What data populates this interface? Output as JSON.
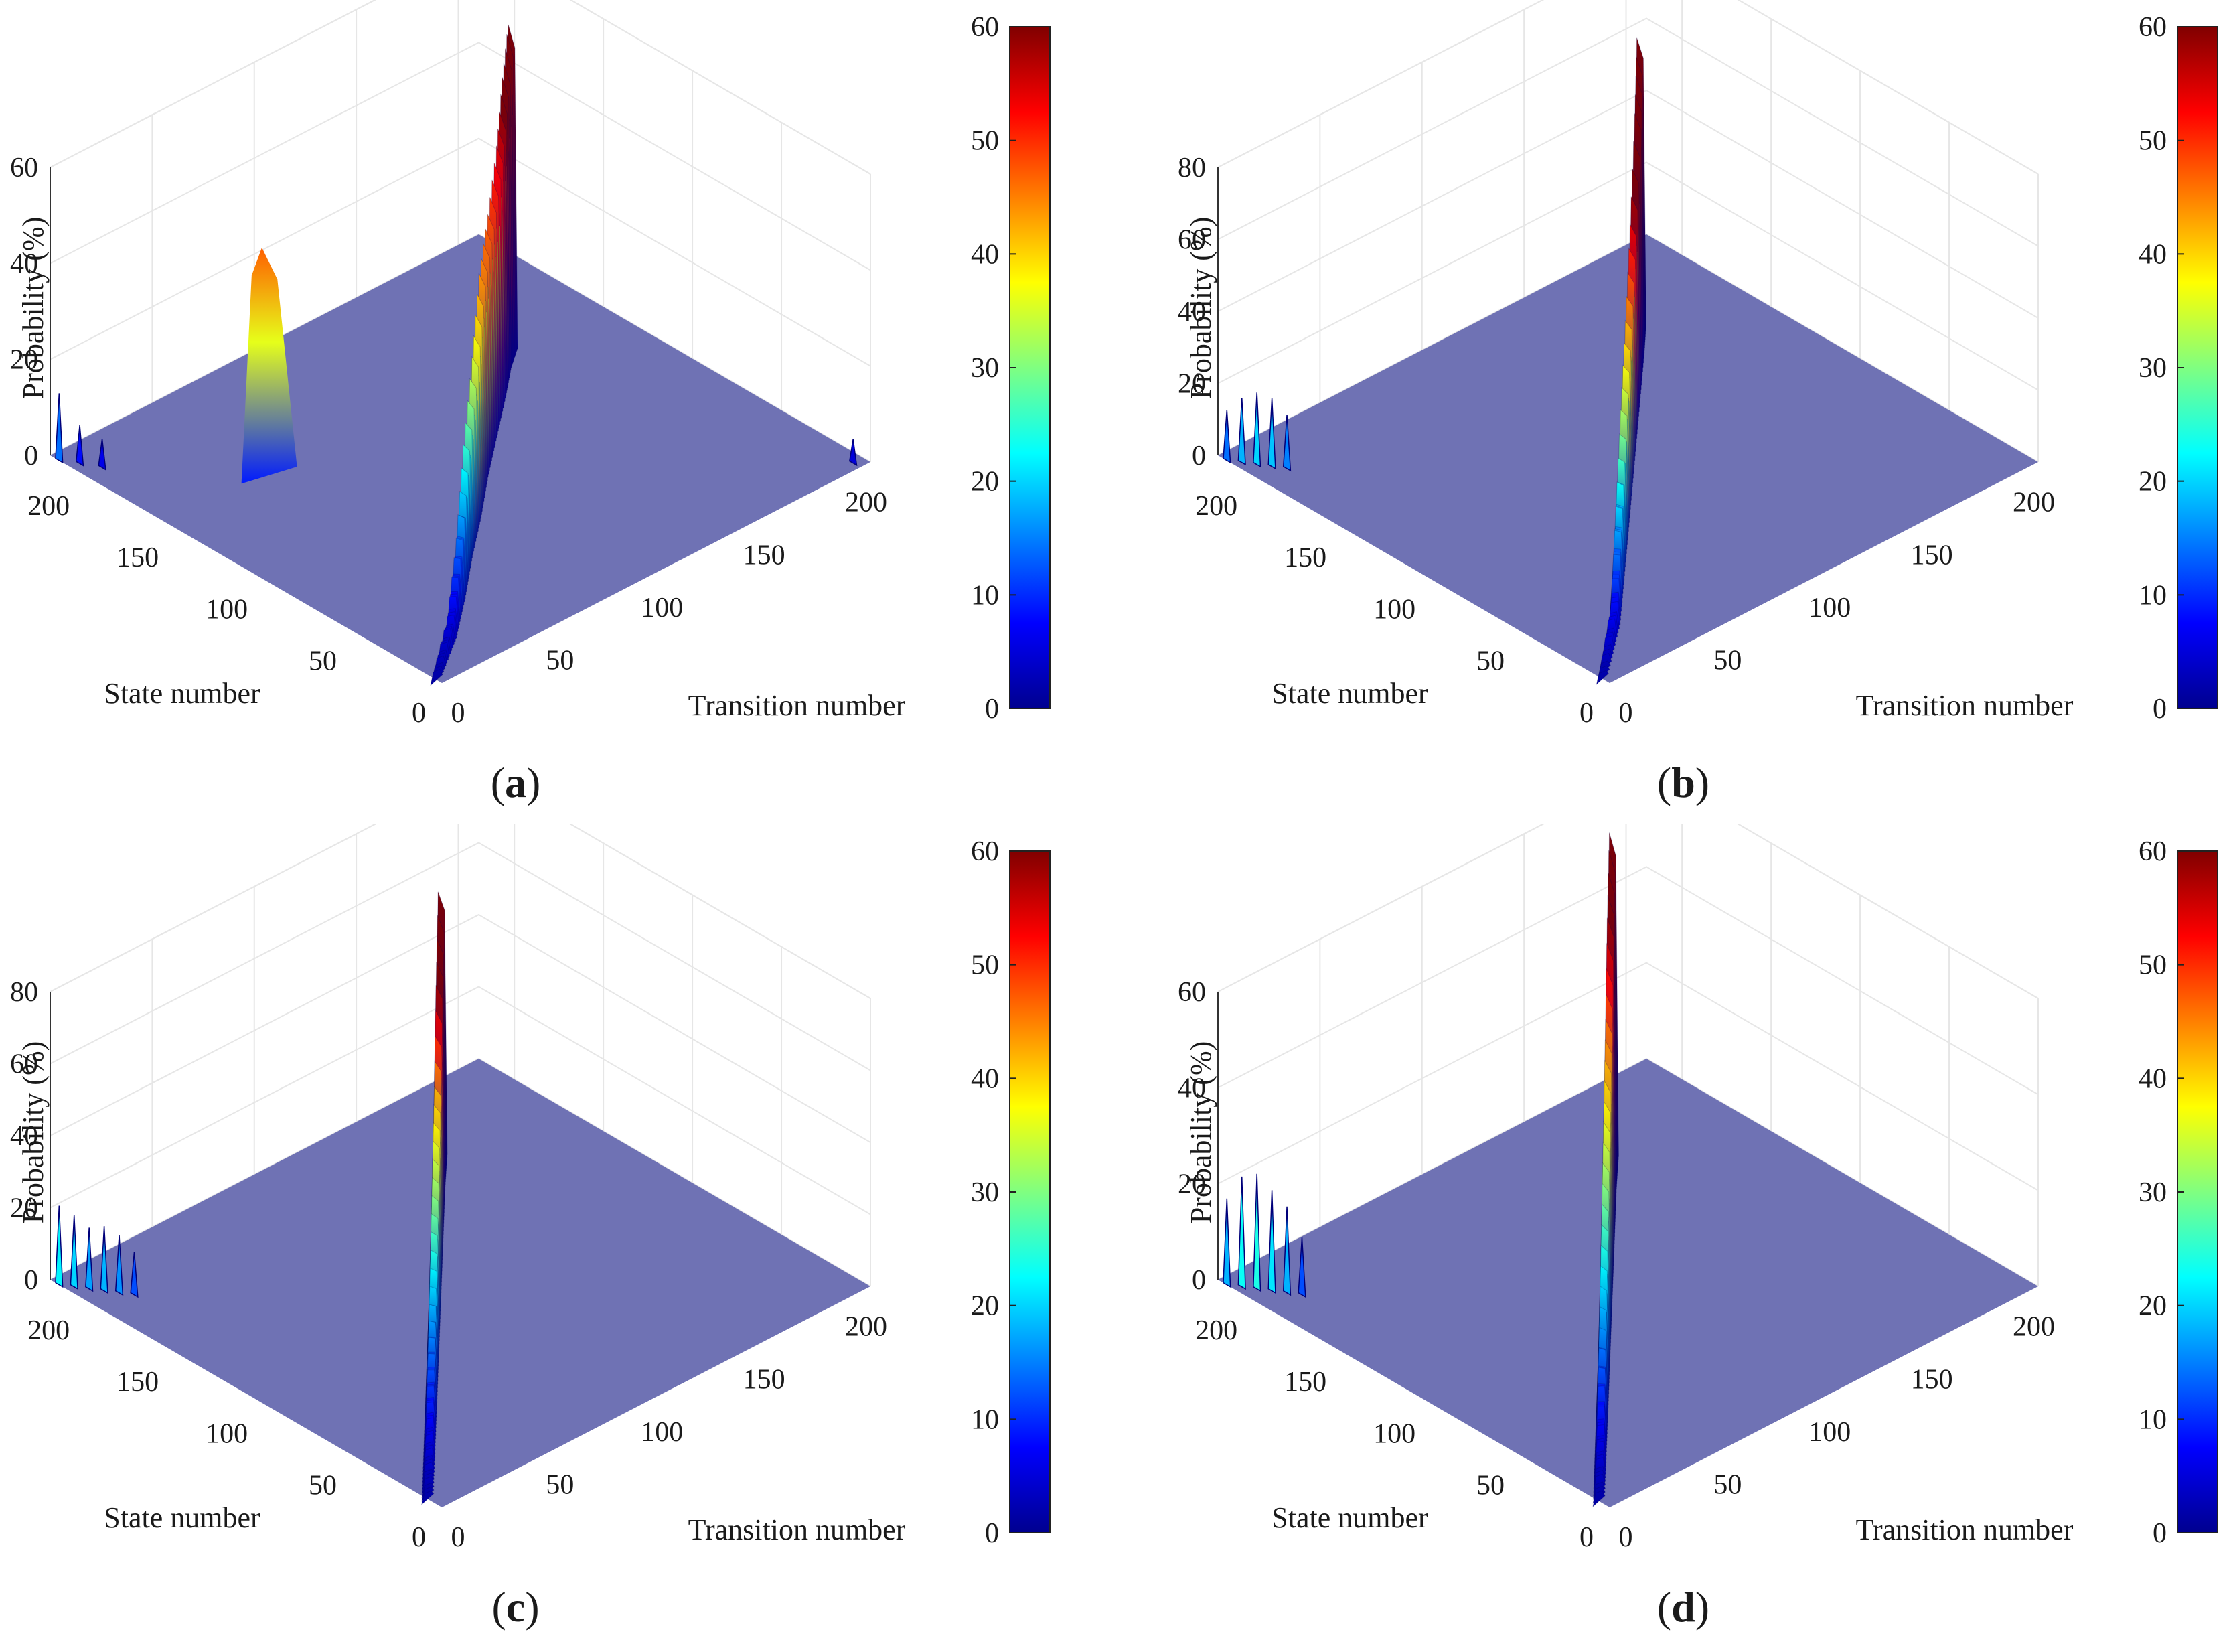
{
  "colors": {
    "floor": "#6f72b4",
    "grid": "#e6e6e6",
    "axis": "#333333",
    "colormap": [
      "#00008f",
      "#0000ff",
      "#0080ff",
      "#00ffff",
      "#80ff80",
      "#ffff00",
      "#ff8000",
      "#ff0000",
      "#800000"
    ]
  },
  "chart_data": [
    {
      "id": "a",
      "type": "surface3d",
      "caption": {
        "open": "(",
        "letter": "a",
        "close": ")"
      },
      "xlabel": "Transition number",
      "ylabel": "State number",
      "zlabel": "Probability (%)",
      "xlim": [
        0,
        210
      ],
      "ylim": [
        0,
        220
      ],
      "zlim": [
        0,
        60
      ],
      "xticks": [
        "0",
        "50",
        "100",
        "150",
        "200"
      ],
      "yticks": [
        "0",
        "50",
        "100",
        "150",
        "200"
      ],
      "zticks": [
        "0",
        "20",
        "40",
        "60"
      ],
      "colorbar": {
        "min": 0,
        "max": 60,
        "ticks": [
          "0",
          "10",
          "20",
          "30",
          "40",
          "50",
          "60"
        ]
      },
      "ridge": [
        {
          "x": 0,
          "y": 3,
          "z": 2
        },
        {
          "x": 20,
          "y": 18,
          "z": 6
        },
        {
          "x": 40,
          "y": 36,
          "z": 14
        },
        {
          "x": 60,
          "y": 55,
          "z": 25
        },
        {
          "x": 80,
          "y": 73,
          "z": 35
        },
        {
          "x": 100,
          "y": 92,
          "z": 44
        },
        {
          "x": 120,
          "y": 110,
          "z": 48
        },
        {
          "x": 140,
          "y": 128,
          "z": 54
        },
        {
          "x": 155,
          "y": 142,
          "z": 62
        },
        {
          "x": 165,
          "y": 150,
          "z": 70
        }
      ],
      "secondary_peak": {
        "x": 45,
        "y": 155,
        "z": 47
      },
      "corner_peaks": [
        {
          "x": 0,
          "y": 215,
          "z": 14
        },
        {
          "x": 4,
          "y": 208,
          "z": 8
        },
        {
          "x": 8,
          "y": 200,
          "z": 6
        },
        {
          "x": 205,
          "y": 4,
          "z": 5
        }
      ]
    },
    {
      "id": "b",
      "type": "surface3d",
      "caption": {
        "open": "(",
        "letter": "b",
        "close": ")"
      },
      "xlabel": "Transition number",
      "ylabel": "State number",
      "zlabel": "Probability (%)",
      "xlim": [
        0,
        210
      ],
      "ylim": [
        0,
        220
      ],
      "zlim": [
        0,
        80
      ],
      "xticks": [
        "0",
        "50",
        "100",
        "150",
        "200"
      ],
      "yticks": [
        "0",
        "50",
        "100",
        "150",
        "200"
      ],
      "zticks": [
        "0",
        "20",
        "40",
        "60",
        "80"
      ],
      "colorbar": {
        "min": 0,
        "max": 60,
        "ticks": [
          "0",
          "10",
          "20",
          "30",
          "40",
          "50",
          "60"
        ]
      },
      "ridge": [
        {
          "x": 0,
          "y": 4,
          "z": 2
        },
        {
          "x": 25,
          "y": 26,
          "z": 8
        },
        {
          "x": 50,
          "y": 52,
          "z": 20
        },
        {
          "x": 75,
          "y": 78,
          "z": 32
        },
        {
          "x": 100,
          "y": 104,
          "z": 42
        },
        {
          "x": 125,
          "y": 130,
          "z": 54
        },
        {
          "x": 150,
          "y": 156,
          "z": 70
        },
        {
          "x": 165,
          "y": 172,
          "z": 82
        }
      ],
      "corner_peaks": [
        {
          "x": 0,
          "y": 215,
          "z": 14
        },
        {
          "x": 3,
          "y": 210,
          "z": 18
        },
        {
          "x": 6,
          "y": 205,
          "z": 20
        },
        {
          "x": 9,
          "y": 200,
          "z": 19
        },
        {
          "x": 12,
          "y": 195,
          "z": 15
        }
      ]
    },
    {
      "id": "c",
      "type": "surface3d",
      "caption": {
        "open": "(",
        "letter": "c",
        "close": ")"
      },
      "xlabel": "Transition number",
      "ylabel": "State number",
      "zlabel": "Probability (%)",
      "xlim": [
        0,
        210
      ],
      "ylim": [
        0,
        220
      ],
      "zlim": [
        0,
        80
      ],
      "xticks": [
        "0",
        "50",
        "100",
        "150",
        "200"
      ],
      "yticks": [
        "0",
        "50",
        "100",
        "150",
        "200"
      ],
      "zticks": [
        "0",
        "20",
        "40",
        "60",
        "80"
      ],
      "colorbar": {
        "min": 0,
        "max": 60,
        "ticks": [
          "0",
          "10",
          "20",
          "30",
          "40",
          "50",
          "60"
        ]
      },
      "ridge": [
        {
          "x": 0,
          "y": 8,
          "z": 2
        },
        {
          "x": 20,
          "y": 30,
          "z": 6
        },
        {
          "x": 40,
          "y": 52,
          "z": 12
        },
        {
          "x": 60,
          "y": 74,
          "z": 18
        },
        {
          "x": 80,
          "y": 96,
          "z": 26
        },
        {
          "x": 100,
          "y": 118,
          "z": 34
        },
        {
          "x": 120,
          "y": 140,
          "z": 42
        },
        {
          "x": 140,
          "y": 162,
          "z": 58
        },
        {
          "x": 155,
          "y": 178,
          "z": 75
        }
      ],
      "corner_peaks": [
        {
          "x": 0,
          "y": 215,
          "z": 22
        },
        {
          "x": 3,
          "y": 210,
          "z": 20
        },
        {
          "x": 6,
          "y": 205,
          "z": 17
        },
        {
          "x": 9,
          "y": 200,
          "z": 18
        },
        {
          "x": 12,
          "y": 195,
          "z": 16
        },
        {
          "x": 15,
          "y": 190,
          "z": 12
        }
      ]
    },
    {
      "id": "d",
      "type": "surface3d",
      "caption": {
        "open": "(",
        "letter": "d",
        "close": ")"
      },
      "xlabel": "Transition number",
      "ylabel": "State number",
      "zlabel": "Probability (%)",
      "xlim": [
        0,
        210
      ],
      "ylim": [
        0,
        220
      ],
      "zlim": [
        0,
        60
      ],
      "xticks": [
        "0",
        "50",
        "100",
        "150",
        "200"
      ],
      "yticks": [
        "0",
        "50",
        "100",
        "150",
        "200"
      ],
      "zticks": [
        "0",
        "20",
        "40",
        "60"
      ],
      "colorbar": {
        "min": 0,
        "max": 60,
        "ticks": [
          "0",
          "10",
          "20",
          "30",
          "40",
          "50",
          "60"
        ]
      },
      "ridge": [
        {
          "x": 0,
          "y": 6,
          "z": 2
        },
        {
          "x": 20,
          "y": 28,
          "z": 7
        },
        {
          "x": 40,
          "y": 50,
          "z": 14
        },
        {
          "x": 60,
          "y": 72,
          "z": 22
        },
        {
          "x": 80,
          "y": 94,
          "z": 30
        },
        {
          "x": 100,
          "y": 116,
          "z": 38
        },
        {
          "x": 120,
          "y": 138,
          "z": 46
        },
        {
          "x": 140,
          "y": 160,
          "z": 58
        },
        {
          "x": 155,
          "y": 176,
          "z": 70
        }
      ],
      "corner_peaks": [
        {
          "x": 0,
          "y": 215,
          "z": 18
        },
        {
          "x": 3,
          "y": 210,
          "z": 23
        },
        {
          "x": 6,
          "y": 205,
          "z": 24
        },
        {
          "x": 9,
          "y": 200,
          "z": 21
        },
        {
          "x": 12,
          "y": 195,
          "z": 18
        },
        {
          "x": 15,
          "y": 190,
          "z": 12
        }
      ]
    }
  ]
}
